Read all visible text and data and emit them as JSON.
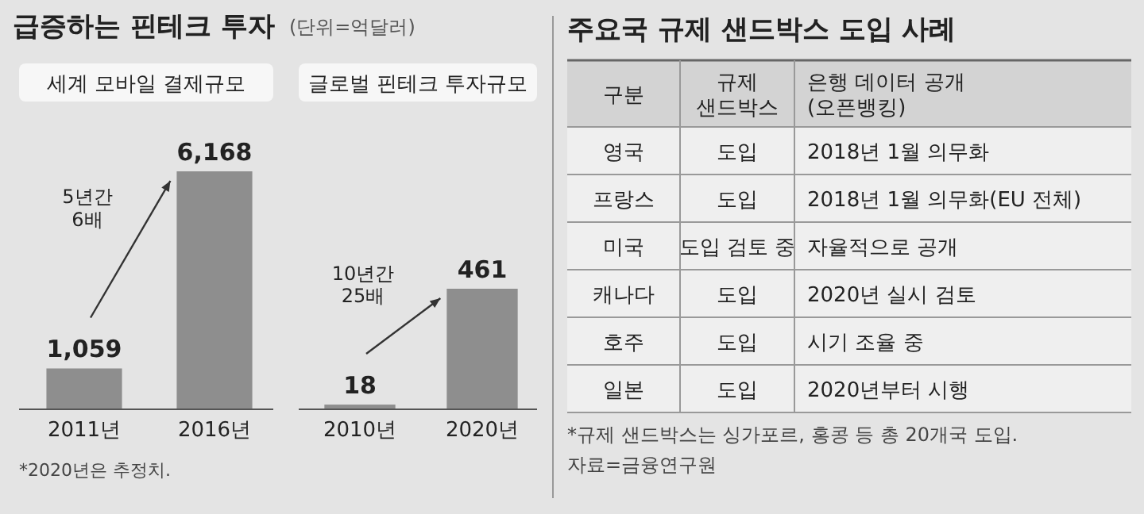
{
  "chart_data": [
    {
      "type": "other",
      "title": "급증하는 핀테크 투자",
      "subtitle": "(단위=억달러)",
      "annotations": [
        "*2020년은 추정치."
      ]
    },
    {
      "type": "bar",
      "title": "세계 모바일 결제규모",
      "categories": [
        "2011년",
        "2016년"
      ],
      "values": [
        1059,
        6168
      ],
      "value_labels": [
        "1,059",
        "6,168"
      ],
      "color": "#8e8e8e",
      "annotations": [
        "5년간\n6배"
      ]
    },
    {
      "type": "bar",
      "title": "글로벌 핀테크 투자규모",
      "categories": [
        "2010년",
        "2020년"
      ],
      "values": [
        18,
        461
      ],
      "value_labels": [
        "18",
        "461"
      ],
      "color": "#8e8e8e",
      "annotations": [
        "10년간\n25배"
      ]
    },
    {
      "type": "other",
      "title": "주요국 규제 샌드박스 도입 사례",
      "annotations": [
        "구분",
        "규제\n샌드박스",
        "은행 데이터 공개\n(오픈뱅킹)",
        "영국",
        "도입",
        "2018년 1월 의무화",
        "프랑스",
        "도입",
        "2018년 1월 의무화(EU 전체)",
        "미국",
        "도입 검토 중",
        "자율적으로 공개",
        "캐나다",
        "도입",
        "2020년 실시 검토",
        "호주",
        "도입",
        "시기 조율 중",
        "일본",
        "도입",
        "2020년부터 시행",
        "*규제 샌드박스는 싱가포르, 홍콩 등 총 20개국 도입.",
        "자료=금융연구원"
      ]
    }
  ]
}
